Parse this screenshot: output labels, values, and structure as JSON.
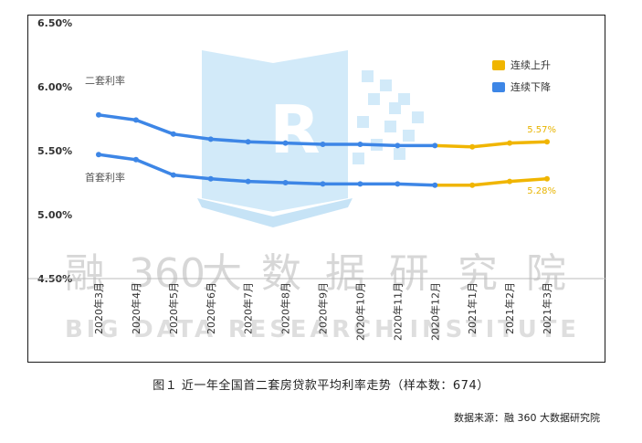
{
  "chart_data": {
    "type": "line",
    "categories": [
      "2020年3月",
      "2020年4月",
      "2020年5月",
      "2020年6月",
      "2020年7月",
      "2020年8月",
      "2020年9月",
      "2020年10月",
      "2020年11月",
      "2020年12月",
      "2021年1月",
      "2021年2月",
      "2021年3月"
    ],
    "series": [
      {
        "name": "二套利率",
        "values": [
          5.78,
          5.74,
          5.63,
          5.59,
          5.57,
          5.56,
          5.55,
          5.55,
          5.54,
          5.54,
          5.53,
          5.56,
          5.57
        ]
      },
      {
        "name": "首套利率",
        "values": [
          5.47,
          5.43,
          5.31,
          5.28,
          5.26,
          5.25,
          5.24,
          5.24,
          5.24,
          5.23,
          5.23,
          5.26,
          5.28
        ]
      }
    ],
    "trend_split_index": 9,
    "y_ticks": [
      "4.50%",
      "5.00%",
      "5.50%",
      "6.00%",
      "6.50%"
    ],
    "ylim": [
      4.5,
      6.5
    ],
    "legend": {
      "position": "top-right",
      "items": [
        {
          "label": "连续上升",
          "color": "#f0b500"
        },
        {
          "label": "连续下降",
          "color": "#3d86e6"
        }
      ]
    },
    "data_labels": [
      {
        "series": 0,
        "index": 12,
        "text": "5.57%"
      },
      {
        "series": 1,
        "index": 12,
        "text": "5.28%"
      }
    ],
    "colors": {
      "up": "#f0b500",
      "down": "#3d86e6"
    },
    "grid": false
  },
  "watermark": {
    "chinese": [
      "融",
      "360",
      "大",
      "数",
      "据",
      "研",
      "究",
      "院"
    ],
    "english": "BIG DATA RESEARCH INSTITUTE",
    "logo_letter": "R"
  },
  "caption": "图１ 近一年全国首二套房贷款平均利率走势（样本数：674）",
  "source": "数据来源：融 360 大数据研究院"
}
